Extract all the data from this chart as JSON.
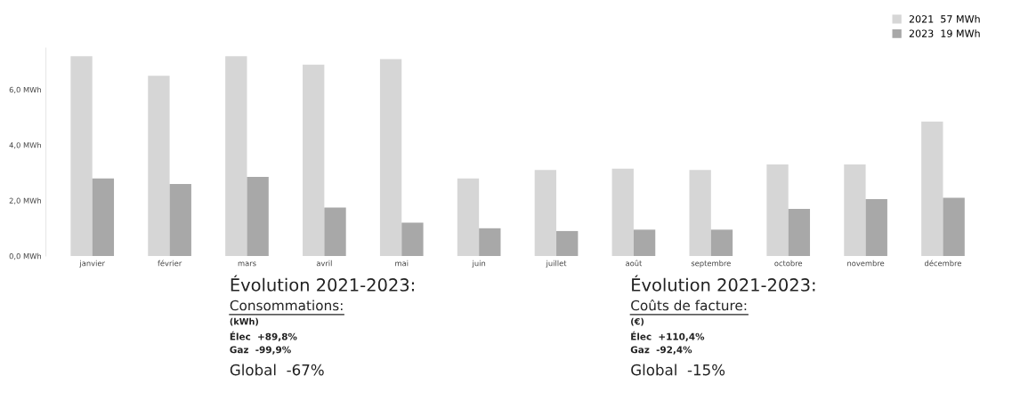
{
  "chart_data": {
    "type": "bar",
    "categories": [
      "janvier",
      "février",
      "mars",
      "avril",
      "mai",
      "juin",
      "juillet",
      "août",
      "septembre",
      "octobre",
      "novembre",
      "décembre"
    ],
    "series": [
      {
        "name": "2021  57 MWh",
        "color": "#d6d6d6",
        "values": [
          7.2,
          6.5,
          7.2,
          6.9,
          7.1,
          2.8,
          3.1,
          3.15,
          3.1,
          3.3,
          3.3,
          4.85
        ]
      },
      {
        "name": "2023  19 MWh",
        "color": "#a8a8a8",
        "values": [
          2.8,
          2.6,
          2.85,
          1.75,
          1.2,
          1.0,
          0.9,
          0.95,
          0.95,
          1.7,
          2.05,
          2.1
        ]
      }
    ],
    "ylim": [
      0,
      7.5
    ],
    "yticks": [
      {
        "value": 0,
        "label": "0,0 MWh"
      },
      {
        "value": 2,
        "label": "2,0 MWh"
      },
      {
        "value": 4,
        "label": "4,0 MWh"
      },
      {
        "value": 6,
        "label": "6,0 MWh"
      }
    ],
    "grid": false,
    "legend": "top right",
    "annotations": [
      "Évolution 2021-2023:",
      "Consommations:",
      "(kWh)",
      "Élec  +89,8%",
      "Gaz  -99,9%",
      "Global  -67%",
      "Évolution 2021-2023:",
      "Coûts de facture:",
      "(€)",
      "Élec  +110,4%",
      "Gaz  -92,4%",
      "Global  -15%"
    ]
  }
}
